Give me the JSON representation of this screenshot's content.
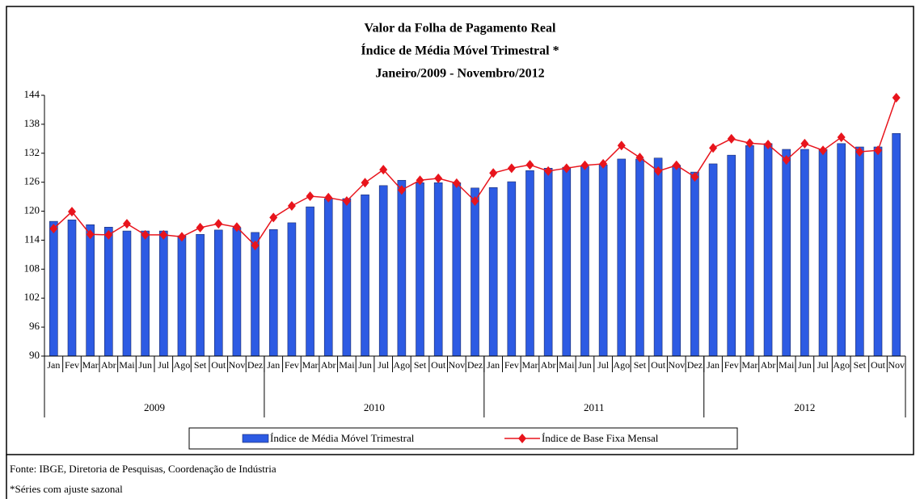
{
  "chart_data": {
    "type": "bar-line",
    "title": [
      "Valor da Folha de Pagamento Real",
      "Índice de Média Móvel Trimestral *",
      "Janeiro/2009 - Novembro/2012"
    ],
    "categories": [
      "Jan",
      "Fev",
      "Mar",
      "Abr",
      "Mai",
      "Jun",
      "Jul",
      "Ago",
      "Set",
      "Out",
      "Nov",
      "Dez",
      "Jan",
      "Fev",
      "Mar",
      "Abr",
      "Mai",
      "Jun",
      "Jul",
      "Ago",
      "Set",
      "Out",
      "Nov",
      "Dez",
      "Jan",
      "Fev",
      "Mar",
      "Abr",
      "Mai",
      "Jun",
      "Jul",
      "Ago",
      "Set",
      "Out",
      "Nov",
      "Dez",
      "Jan",
      "Fev",
      "Mar",
      "Abr",
      "Mai",
      "Jun",
      "Jul",
      "Ago",
      "Set",
      "Out",
      "Nov"
    ],
    "year_groups": [
      "2009",
      "2010",
      "2011",
      "2012"
    ],
    "series": [
      {
        "name": "Índice de Média Móvel Trimestral",
        "type": "bar",
        "color": "#2d5be3",
        "values": [
          117.9,
          118.2,
          117.2,
          116.7,
          115.9,
          115.9,
          115.9,
          114.9,
          115.2,
          116.1,
          116.6,
          115.6,
          116.2,
          117.6,
          120.9,
          122.6,
          122.6,
          123.4,
          125.3,
          126.4,
          125.9,
          125.9,
          125.9,
          124.8,
          124.9,
          126.1,
          128.4,
          128.9,
          129.1,
          129.3,
          129.6,
          130.8,
          130.8,
          131.0,
          129.5,
          128.1,
          129.8,
          131.6,
          133.6,
          134.0,
          132.8,
          132.8,
          132.8,
          134.0,
          133.3,
          133.3,
          136.1
        ]
      },
      {
        "name": "Índice de Base Fixa Mensal",
        "type": "line",
        "color": "#e8141c",
        "values": [
          116.4,
          119.9,
          115.2,
          115.1,
          117.4,
          115.1,
          115.1,
          114.7,
          116.6,
          117.4,
          116.7,
          112.9,
          118.7,
          121.1,
          123.1,
          122.8,
          122.1,
          125.9,
          128.6,
          124.4,
          126.4,
          126.8,
          125.8,
          122.1,
          127.9,
          128.9,
          129.6,
          128.3,
          128.9,
          129.5,
          129.8,
          133.6,
          131.1,
          128.3,
          129.5,
          127.1,
          133.1,
          135.0,
          134.1,
          133.8,
          130.6,
          134.0,
          132.6,
          135.3,
          132.3,
          132.6,
          143.5
        ]
      }
    ],
    "ylim": [
      90,
      144
    ],
    "yticks": [
      90,
      96,
      102,
      108,
      114,
      120,
      126,
      132,
      138,
      144
    ],
    "grid": false,
    "legend": "bottom",
    "source": "Fonte: IBGE, Diretoria de Pesquisas, Coordenação de Indústria",
    "note": "*Séries com ajuste sazonal"
  }
}
